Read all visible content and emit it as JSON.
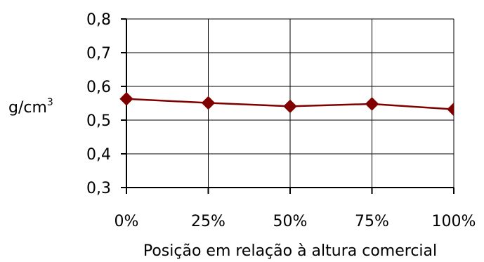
{
  "chart_data": {
    "type": "line",
    "categories": [
      "0%",
      "25%",
      "50%",
      "75%",
      "100%"
    ],
    "series": [
      {
        "values": [
          0.563,
          0.551,
          0.541,
          0.548,
          0.532
        ]
      }
    ],
    "y_ticks": [
      "0,3",
      "0,4",
      "0,5",
      "0,6",
      "0,7",
      "0,8"
    ],
    "ylim": [
      0.3,
      0.8
    ],
    "ylabel": "g/cm",
    "ylabel_superscript": "3",
    "xlabel": "Posição em relação à altura comercial",
    "grid": true,
    "legend": "none",
    "colors": {
      "series": "#800000",
      "grid": "#000000",
      "axis": "#000000",
      "text": "#000000"
    }
  }
}
